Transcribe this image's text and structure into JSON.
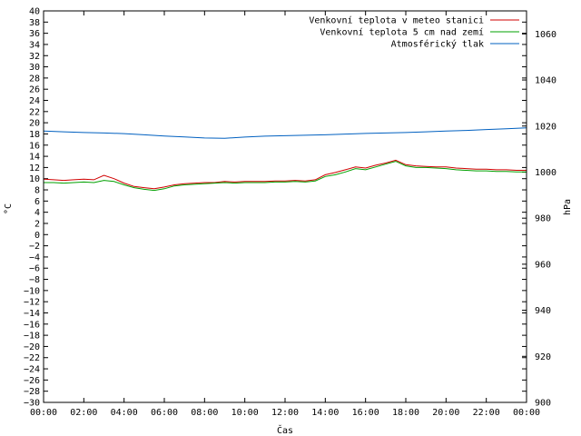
{
  "chart_data": {
    "type": "line",
    "xlabel": "Čas",
    "ylabel": "°C",
    "y2label": "hPa",
    "x_ticks": [
      "00:00",
      "02:00",
      "04:00",
      "06:00",
      "08:00",
      "10:00",
      "12:00",
      "14:00",
      "16:00",
      "18:00",
      "20:00",
      "22:00",
      "00:00"
    ],
    "x_range_hours": [
      0,
      24
    ],
    "ylim": [
      -30,
      40
    ],
    "y_ticks": [
      40,
      38,
      36,
      34,
      32,
      30,
      28,
      26,
      24,
      22,
      20,
      18,
      16,
      14,
      12,
      10,
      8,
      6,
      4,
      2,
      0,
      -2,
      -4,
      -6,
      -8,
      -10,
      -12,
      -14,
      -16,
      -18,
      -20,
      -22,
      -24,
      -26,
      -28,
      -30
    ],
    "y2lim": [
      900,
      1070
    ],
    "y2_ticks": [
      1060,
      1040,
      1020,
      1000,
      980,
      960,
      940,
      920,
      900
    ],
    "grid": false,
    "legend_position": "top-right",
    "series": [
      {
        "name": "Venkovní teplota v meteo stanici",
        "color": "#d00000",
        "axis": "y",
        "x": [
          0,
          0.5,
          1,
          1.5,
          2,
          2.5,
          3,
          3.5,
          4,
          4.5,
          5,
          5.5,
          6,
          6.5,
          7,
          7.5,
          8,
          8.5,
          9,
          9.5,
          10,
          10.5,
          11,
          11.5,
          12,
          12.5,
          13,
          13.5,
          14,
          14.5,
          15,
          15.5,
          16,
          16.5,
          17,
          17.5,
          18,
          18.5,
          19,
          19.5,
          20,
          20.5,
          21,
          21.5,
          22,
          22.5,
          23,
          23.5,
          24
        ],
        "values": [
          9.9,
          9.8,
          9.7,
          9.8,
          9.9,
          9.8,
          10.6,
          10.0,
          9.2,
          8.6,
          8.4,
          8.2,
          8.5,
          8.9,
          9.1,
          9.2,
          9.3,
          9.3,
          9.5,
          9.4,
          9.5,
          9.5,
          9.5,
          9.6,
          9.6,
          9.7,
          9.6,
          9.8,
          10.7,
          11.1,
          11.6,
          12.1,
          11.9,
          12.4,
          12.8,
          13.3,
          12.5,
          12.3,
          12.2,
          12.1,
          12.1,
          11.9,
          11.8,
          11.7,
          11.7,
          11.6,
          11.6,
          11.5,
          11.5
        ]
      },
      {
        "name": "Venkovní teplota 5 cm nad zemí",
        "color": "#00a000",
        "axis": "y",
        "x": [
          0,
          0.5,
          1,
          1.5,
          2,
          2.5,
          3,
          3.5,
          4,
          4.5,
          5,
          5.5,
          6,
          6.5,
          7,
          7.5,
          8,
          8.5,
          9,
          9.5,
          10,
          10.5,
          11,
          11.5,
          12,
          12.5,
          13,
          13.5,
          14,
          14.5,
          15,
          15.5,
          16,
          16.5,
          17,
          17.5,
          18,
          18.5,
          19,
          19.5,
          20,
          20.5,
          21,
          21.5,
          22,
          22.5,
          23,
          23.5,
          24
        ],
        "values": [
          9.3,
          9.3,
          9.2,
          9.3,
          9.4,
          9.3,
          9.7,
          9.5,
          8.9,
          8.4,
          8.1,
          7.9,
          8.2,
          8.7,
          8.9,
          9.0,
          9.1,
          9.2,
          9.3,
          9.2,
          9.3,
          9.3,
          9.3,
          9.4,
          9.4,
          9.5,
          9.4,
          9.6,
          10.4,
          10.7,
          11.2,
          11.8,
          11.6,
          12.1,
          12.6,
          13.1,
          12.3,
          12.0,
          12.0,
          11.9,
          11.8,
          11.6,
          11.5,
          11.4,
          11.4,
          11.3,
          11.3,
          11.2,
          11.2
        ]
      },
      {
        "name": "Atmosférický tlak",
        "color": "#0060c0",
        "axis": "y2",
        "x": [
          0,
          1,
          2,
          3,
          4,
          5,
          6,
          7,
          8,
          9,
          10,
          11,
          12,
          13,
          14,
          15,
          16,
          17,
          18,
          19,
          20,
          21,
          22,
          23,
          24
        ],
        "values": [
          1017.8,
          1017.5,
          1017.2,
          1017.0,
          1016.7,
          1016.2,
          1015.7,
          1015.3,
          1014.8,
          1014.7,
          1015.2,
          1015.6,
          1015.8,
          1016.0,
          1016.2,
          1016.5,
          1016.8,
          1017.0,
          1017.2,
          1017.5,
          1017.8,
          1018.1,
          1018.5,
          1018.8,
          1019.2
        ]
      }
    ]
  }
}
